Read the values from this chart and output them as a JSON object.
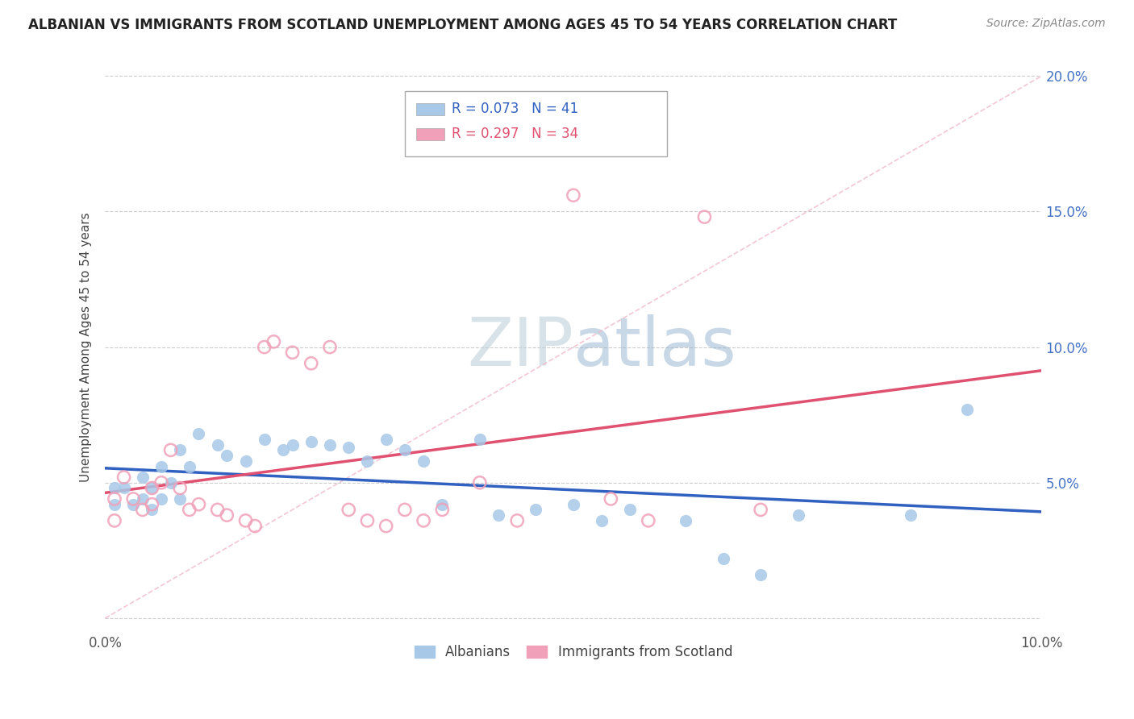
{
  "title": "ALBANIAN VS IMMIGRANTS FROM SCOTLAND UNEMPLOYMENT AMONG AGES 45 TO 54 YEARS CORRELATION CHART",
  "source": "Source: ZipAtlas.com",
  "ylabel": "Unemployment Among Ages 45 to 54 years",
  "xlim": [
    0.0,
    0.1
  ],
  "ylim": [
    -0.005,
    0.205
  ],
  "albanian_R": 0.073,
  "albanian_N": 41,
  "scotland_R": 0.297,
  "scotland_N": 34,
  "albanian_color": "#a8c8e8",
  "scotland_color": "#f0a0b8",
  "trendline_albanian_color": "#3060c0",
  "trendline_scotland_color": "#e05070",
  "diagonal_color": "#f0b8c8",
  "watermark_color": "#c8daea",
  "albanian_x": [
    0.001,
    0.001,
    0.002,
    0.003,
    0.004,
    0.004,
    0.005,
    0.005,
    0.006,
    0.006,
    0.007,
    0.008,
    0.008,
    0.009,
    0.01,
    0.012,
    0.013,
    0.015,
    0.017,
    0.019,
    0.02,
    0.022,
    0.024,
    0.026,
    0.028,
    0.03,
    0.032,
    0.034,
    0.036,
    0.04,
    0.042,
    0.046,
    0.05,
    0.053,
    0.056,
    0.062,
    0.066,
    0.07,
    0.074,
    0.086,
    0.092
  ],
  "albanian_y": [
    0.048,
    0.042,
    0.048,
    0.042,
    0.052,
    0.044,
    0.048,
    0.04,
    0.056,
    0.044,
    0.05,
    0.062,
    0.044,
    0.056,
    0.068,
    0.064,
    0.06,
    0.058,
    0.066,
    0.062,
    0.064,
    0.065,
    0.064,
    0.063,
    0.058,
    0.066,
    0.062,
    0.058,
    0.042,
    0.066,
    0.038,
    0.04,
    0.042,
    0.036,
    0.04,
    0.036,
    0.022,
    0.016,
    0.038,
    0.038,
    0.077
  ],
  "scotland_x": [
    0.001,
    0.001,
    0.002,
    0.003,
    0.004,
    0.005,
    0.005,
    0.006,
    0.007,
    0.008,
    0.009,
    0.01,
    0.012,
    0.013,
    0.015,
    0.016,
    0.017,
    0.018,
    0.02,
    0.022,
    0.024,
    0.026,
    0.028,
    0.03,
    0.032,
    0.034,
    0.036,
    0.04,
    0.044,
    0.05,
    0.054,
    0.058,
    0.064,
    0.07
  ],
  "scotland_y": [
    0.044,
    0.036,
    0.052,
    0.044,
    0.04,
    0.048,
    0.042,
    0.05,
    0.062,
    0.048,
    0.04,
    0.042,
    0.04,
    0.038,
    0.036,
    0.034,
    0.1,
    0.102,
    0.098,
    0.094,
    0.1,
    0.04,
    0.036,
    0.034,
    0.04,
    0.036,
    0.04,
    0.05,
    0.036,
    0.156,
    0.044,
    0.036,
    0.148,
    0.04
  ]
}
